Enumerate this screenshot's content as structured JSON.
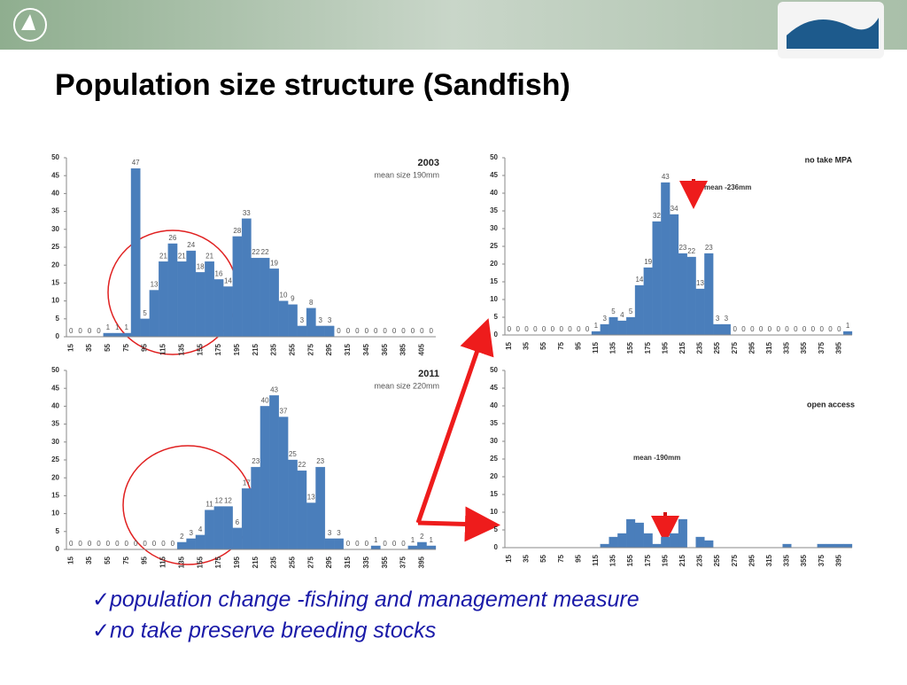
{
  "header": {
    "title": "Population size structure (Sandfish)"
  },
  "chart_data": [
    {
      "type": "bar",
      "title": "2003",
      "subtitle": "mean size 190mm",
      "color": "#4a7ebb",
      "data_labels": true,
      "categories": [
        "15",
        null,
        "35",
        null,
        "55",
        null,
        "75",
        null,
        "95",
        null,
        "115",
        null,
        "135",
        null,
        "155",
        null,
        "175",
        null,
        "195",
        null,
        "215",
        null,
        "235",
        null,
        "255",
        null,
        "275",
        null,
        "295",
        null,
        "315",
        null,
        "345",
        null,
        "365",
        null,
        "385",
        null,
        "405",
        null
      ],
      "values": [
        0,
        0,
        0,
        0,
        1,
        1,
        1,
        47,
        5,
        13,
        21,
        26,
        21,
        24,
        18,
        21,
        16,
        14,
        28,
        33,
        22,
        22,
        19,
        10,
        9,
        3,
        8,
        3,
        3,
        0,
        0,
        0,
        0,
        0,
        0,
        0,
        0,
        0,
        0,
        0
      ],
      "ylim": [
        0,
        50
      ],
      "yticks": [
        0,
        5,
        10,
        15,
        20,
        25,
        30,
        35,
        40,
        45,
        50
      ]
    },
    {
      "type": "bar",
      "title": "2011",
      "subtitle": "mean size 220mm",
      "color": "#4a7ebb",
      "data_labels": true,
      "categories": [
        "15",
        null,
        "35",
        null,
        "55",
        null,
        "75",
        null,
        "95",
        null,
        "115",
        null,
        "135",
        null,
        "155",
        null,
        "175",
        null,
        "195",
        null,
        "215",
        null,
        "235",
        null,
        "255",
        null,
        "275",
        null,
        "295",
        null,
        "315",
        null,
        "335",
        null,
        "355",
        null,
        "375",
        null,
        "395",
        null
      ],
      "values": [
        0,
        0,
        0,
        0,
        0,
        0,
        0,
        0,
        0,
        0,
        0,
        0,
        2,
        3,
        4,
        11,
        12,
        12,
        6,
        17,
        23,
        40,
        43,
        37,
        25,
        22,
        13,
        23,
        3,
        3,
        0,
        0,
        0,
        1,
        0,
        0,
        0,
        1,
        2,
        1
      ],
      "ylim": [
        0,
        50
      ],
      "yticks": [
        0,
        5,
        10,
        15,
        20,
        25,
        30,
        35,
        40,
        45,
        50
      ]
    },
    {
      "type": "bar",
      "title": "no take MPA",
      "annotation": "mean -236mm",
      "color": "#4a7ebb",
      "data_labels": true,
      "categories": [
        "15",
        null,
        "35",
        null,
        "55",
        null,
        "75",
        null,
        "95",
        null,
        "115",
        null,
        "135",
        null,
        "155",
        null,
        "175",
        null,
        "195",
        null,
        "215",
        null,
        "235",
        null,
        "255",
        null,
        "275",
        null,
        "295",
        null,
        "315",
        null,
        "335",
        null,
        "355",
        null,
        "375",
        null,
        "395",
        null
      ],
      "values": [
        0,
        0,
        0,
        0,
        0,
        0,
        0,
        0,
        0,
        0,
        1,
        3,
        5,
        4,
        5,
        14,
        19,
        32,
        43,
        34,
        23,
        22,
        13,
        23,
        3,
        3,
        0,
        0,
        0,
        0,
        0,
        0,
        0,
        0,
        0,
        0,
        0,
        0,
        0,
        1
      ],
      "ylim": [
        0,
        50
      ],
      "yticks": [
        0,
        5,
        10,
        15,
        20,
        25,
        30,
        35,
        40,
        45,
        50
      ]
    },
    {
      "type": "bar",
      "title": "open access",
      "annotation": "mean -190mm",
      "color": "#4a7ebb",
      "data_labels": false,
      "categories": [
        "15",
        null,
        "35",
        null,
        "55",
        null,
        "75",
        null,
        "95",
        null,
        "115",
        null,
        "135",
        null,
        "155",
        null,
        "175",
        null,
        "195",
        null,
        "215",
        null,
        "235",
        null,
        "255",
        null,
        "275",
        null,
        "295",
        null,
        "315",
        null,
        "335",
        null,
        "355",
        null,
        "375",
        null,
        "395",
        null
      ],
      "values": [
        0,
        0,
        0,
        0,
        0,
        0,
        0,
        0,
        0,
        0,
        0,
        1,
        3,
        4,
        8,
        7,
        4,
        1,
        3,
        4,
        8,
        0,
        3,
        2,
        0,
        0,
        0,
        0,
        0,
        0,
        0,
        0,
        1,
        0,
        0,
        0,
        1,
        1,
        1,
        1
      ],
      "ylim": [
        0,
        50
      ],
      "yticks": [
        0,
        5,
        10,
        15,
        20,
        25,
        30,
        35,
        40,
        45,
        50
      ]
    }
  ],
  "bullets": [
    "population change  -fishing and management measure",
    "no take preserve breeding stocks"
  ]
}
